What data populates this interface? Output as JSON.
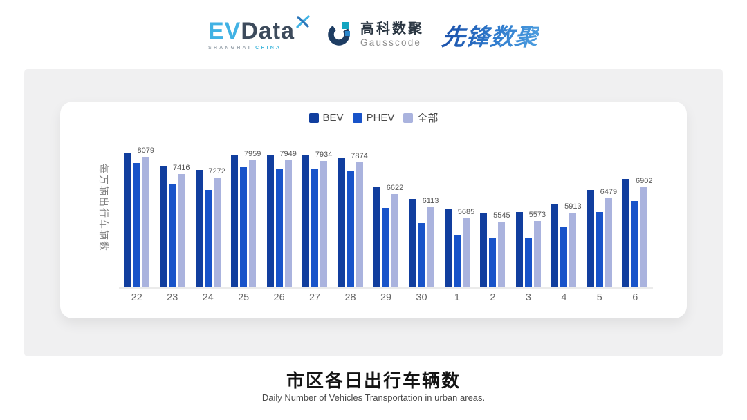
{
  "header": {
    "logos": {
      "evdata": {
        "ev": "EV",
        "data": "Data",
        "sub_left": "SHANGHAI",
        "sub_right": "CHINA"
      },
      "gausscode": {
        "cn": "高科数聚",
        "en": "Gausscode"
      },
      "pioneer": {
        "text": "先锋数聚"
      }
    }
  },
  "chart_data": {
    "type": "bar",
    "title": "市区各日出行车辆数",
    "subtitle": "Daily Number of Vehicles Transportation in urban areas.",
    "ylabel": "每万辆出行车辆数",
    "xlabel": "",
    "categories": [
      "22",
      "23",
      "24",
      "25",
      "26",
      "27",
      "28",
      "29",
      "30",
      "1",
      "2",
      "3",
      "4",
      "5",
      "6"
    ],
    "series": [
      {
        "name": "BEV",
        "color": "#113e9e",
        "labeled": false,
        "values": [
          8260,
          7715,
          7580,
          8170,
          8150,
          8145,
          8060,
          6920,
          6450,
          6070,
          5910,
          5935,
          6230,
          6805,
          7220
        ]
      },
      {
        "name": "PHEV",
        "color": "#1853c9",
        "labeled": false,
        "values": [
          7850,
          7005,
          6805,
          7670,
          7640,
          7600,
          7550,
          6090,
          5505,
          5040,
          4925,
          4915,
          5335,
          5930,
          6375
        ]
      },
      {
        "name": "全部",
        "color": "#aab3de",
        "labeled": true,
        "values": [
          8079,
          7416,
          7272,
          7959,
          7949,
          7934,
          7874,
          6622,
          6113,
          5685,
          5545,
          5573,
          5913,
          6479,
          6902
        ]
      }
    ],
    "ylim": [
      3000,
      9000
    ],
    "grid": false,
    "legend_position": "top"
  },
  "footer": {
    "title": "市区各日出行车辆数",
    "subtitle": "Daily Number of Vehicles Transportation in urban areas."
  },
  "colors": {
    "bev": "#113e9e",
    "phev": "#1853c9",
    "total": "#aab3de",
    "panel_bg": "#f0f0f1",
    "card_bg": "#ffffff",
    "axis_line": "#ebebeb"
  }
}
